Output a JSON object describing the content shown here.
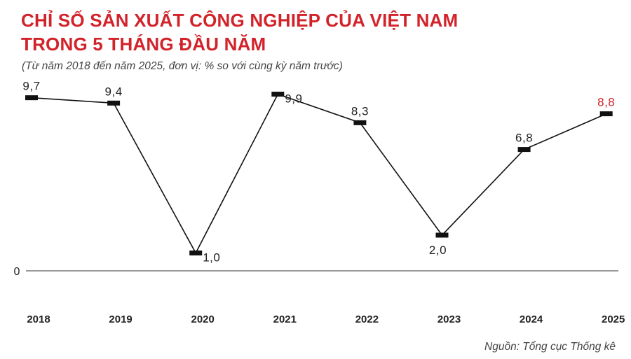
{
  "header": {
    "title_line1": "CHỈ SỐ SẢN XUẤT CÔNG NGHIỆP CỦA VIỆT NAM",
    "title_line2": "TRONG 5 THÁNG ĐẦU NĂM",
    "subtitle": "(Từ năm 2018 đến năm 2025, đơn vị: % so với cùng kỳ năm trước)"
  },
  "footer": {
    "source": "Nguồn: Tổng cục Thống kê"
  },
  "colors": {
    "title": "#d2232a",
    "line": "#111111",
    "marker": "#111111",
    "highlight_label": "#d2232a",
    "text": "#222222",
    "axis": "#333333"
  },
  "chart_data": {
    "type": "line",
    "title": "CHỈ SỐ SẢN XUẤT CÔNG NGHIỆP CỦA VIỆT NAM TRONG 5 THÁNG ĐẦU NĂM",
    "subtitle": "(Từ năm 2018 đến năm 2025, đơn vị: % so với cùng kỳ năm trước)",
    "categories": [
      "2018",
      "2019",
      "2020",
      "2021",
      "2022",
      "2023",
      "2024",
      "2025"
    ],
    "values": [
      9.7,
      9.4,
      1.0,
      9.9,
      8.3,
      2.0,
      6.8,
      8.8
    ],
    "labels": [
      "9,7",
      "9,4",
      "1,0",
      "9,9",
      "8,3",
      "2,0",
      "6,8",
      "8,8"
    ],
    "label_positions": [
      "above",
      "above",
      "right",
      "right",
      "above",
      "below",
      "above",
      "above"
    ],
    "highlight_index": 7,
    "y_tick_labels": [
      "0"
    ],
    "ylim": [
      0,
      10
    ],
    "grid": false,
    "legend": "none"
  }
}
